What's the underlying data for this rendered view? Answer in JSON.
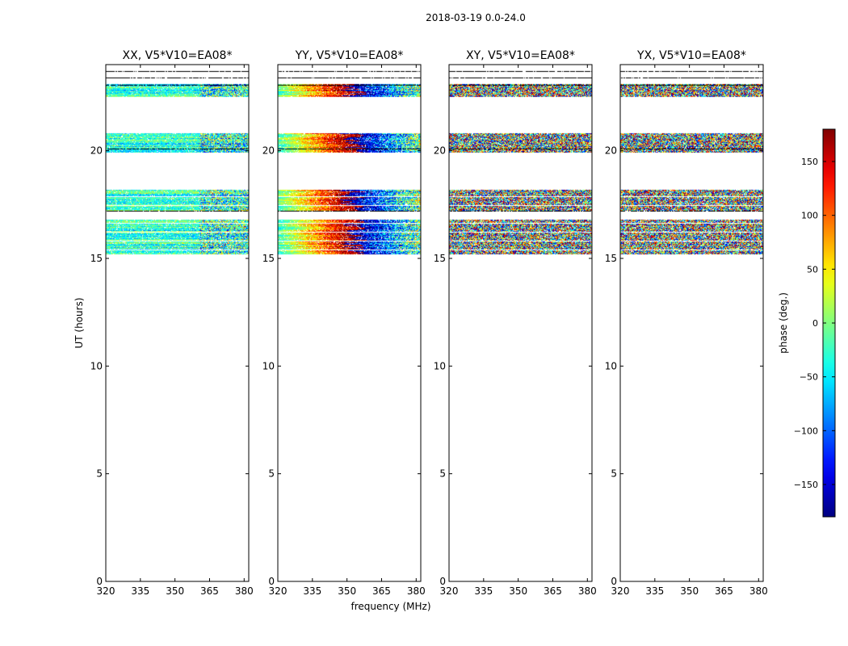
{
  "chart_data": {
    "type": "heatmap",
    "suptitle": "2018-03-19 0.0-24.0",
    "xlabel": "frequency (MHz)",
    "ylabel": "UT (hours)",
    "xlim": [
      320,
      382
    ],
    "ylim": [
      0,
      24
    ],
    "xticks": [
      320,
      335,
      350,
      365,
      380
    ],
    "yticks": [
      0,
      5,
      10,
      15,
      20
    ],
    "colorbar": {
      "label": "phase (deg.)",
      "colormap": "jet",
      "range": [
        -180,
        180
      ],
      "ticks": [
        150,
        100,
        50,
        0,
        -50,
        -100,
        -150
      ]
    },
    "data_time_bands_hours": [
      [
        15.2,
        16.8
      ],
      [
        17.2,
        18.2
      ],
      [
        19.9,
        20.8
      ],
      [
        22.5,
        23.1
      ]
    ],
    "panels": [
      {
        "title": "XX, V5*V10=EA08*",
        "pattern": "low-phase-green-cyan"
      },
      {
        "title": "YY, V5*V10=EA08*",
        "pattern": "phase-gradient-across-frequency"
      },
      {
        "title": "XY, V5*V10=EA08*",
        "pattern": "noise"
      },
      {
        "title": "YX, V5*V10=EA08*",
        "pattern": "noise"
      }
    ]
  }
}
